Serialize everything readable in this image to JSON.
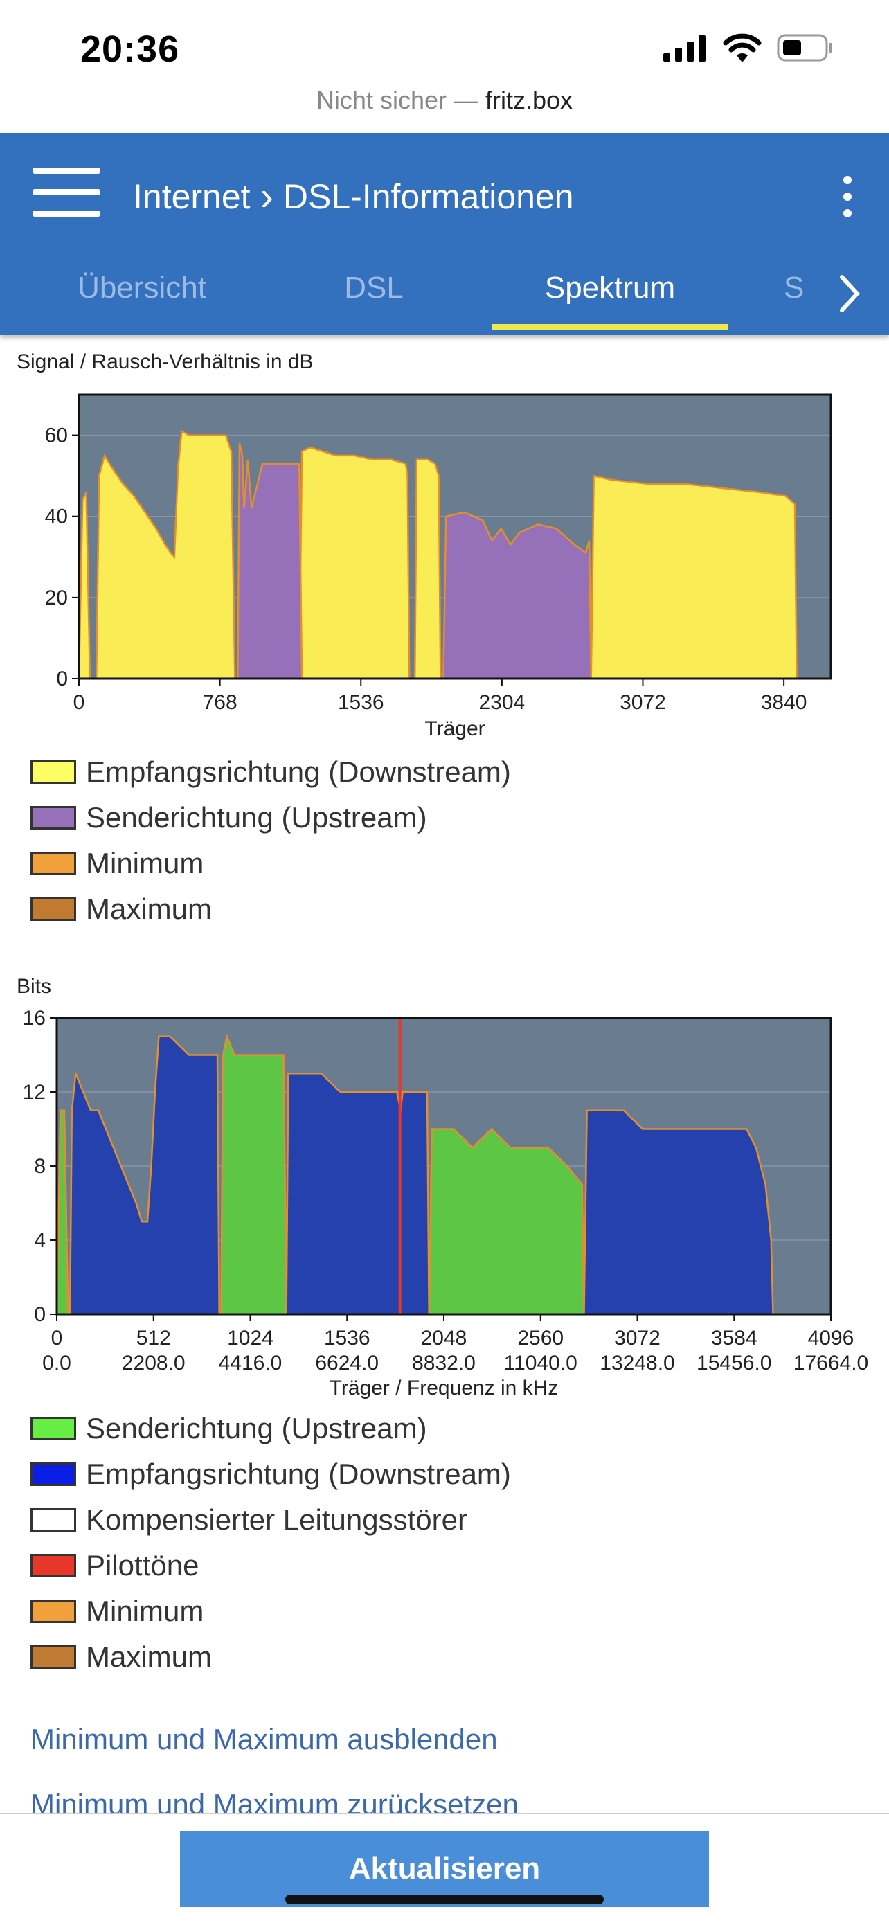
{
  "status": {
    "time": "20:36",
    "url_prefix": "Nicht sicher — ",
    "url_host": "fritz.box"
  },
  "header": {
    "breadcrumb_parent": "Internet",
    "breadcrumb_sep": "›",
    "breadcrumb_current": "DSL-Informationen",
    "tabs": [
      {
        "label": "Übersicht"
      },
      {
        "label": "DSL"
      },
      {
        "label": "Spektrum"
      },
      {
        "label": "S"
      }
    ],
    "active_tab": "Spektrum"
  },
  "chart_data": [
    {
      "type": "area",
      "title": "Signal / Rausch-Verhältnis in dB",
      "xlabel": "Träger",
      "ylabel": "",
      "xlim": [
        0,
        4096
      ],
      "ylim": [
        0,
        70
      ],
      "xticks": [
        "0",
        "768",
        "1536",
        "2304",
        "3072",
        "3840"
      ],
      "xtick_values": [
        0,
        768,
        1536,
        2304,
        3072,
        3840
      ],
      "yticks": [
        "0",
        "20",
        "40",
        "60"
      ],
      "ytick_values": [
        0,
        20,
        40,
        60
      ],
      "grid": true,
      "series": [
        {
          "name": "Empfangsrichtung (Downstream)",
          "color": "#f9ec55",
          "segments": [
            {
              "x": [
                0,
                20,
                40,
                60
              ],
              "y": [
                0,
                44,
                46,
                0
              ]
            },
            {
              "x": [
                95,
                110,
                140,
                180,
                240,
                300,
                360,
                420,
                470,
                500,
                520,
                540,
                560,
                600,
                700,
                800,
                830,
                850
              ],
              "y": [
                0,
                50,
                55,
                52,
                48,
                45,
                41,
                37,
                33,
                31,
                30,
                52,
                61,
                60,
                60,
                60,
                56,
                0
              ]
            },
            {
              "x": [
                1200,
                1215,
                1260,
                1400,
                1500,
                1600,
                1700,
                1780,
                1790,
                1800
              ],
              "y": [
                0,
                56,
                57,
                55,
                55,
                54,
                54,
                53,
                50,
                0
              ]
            },
            {
              "x": [
                1830,
                1840,
                1900,
                1940,
                1960,
                1970
              ],
              "y": [
                0,
                54,
                54,
                53,
                50,
                0
              ]
            },
            {
              "x": [
                2790,
                2805,
                2900,
                3100,
                3300,
                3500,
                3700,
                3850,
                3900,
                3910
              ],
              "y": [
                0,
                50,
                49,
                48,
                48,
                47,
                46,
                45,
                43,
                0
              ]
            }
          ]
        },
        {
          "name": "Senderichtung (Upstream)",
          "color": "#9670b8",
          "segments": [
            {
              "x": [
                865,
                875,
                890,
                900,
                920,
                940,
                1000,
                1100,
                1200,
                1215
              ],
              "y": [
                0,
                58,
                55,
                42,
                54,
                42,
                53,
                53,
                53,
                0
              ]
            },
            {
              "x": [
                1985,
                2000,
                2100,
                2200,
                2250,
                2300,
                2350,
                2400,
                2500,
                2600,
                2700,
                2760,
                2780,
                2790
              ],
              "y": [
                0,
                40,
                41,
                39,
                34,
                37,
                33,
                36,
                38,
                37,
                33,
                31,
                34,
                0
              ]
            }
          ]
        },
        {
          "name": "Minimum",
          "color": "#f1a03b",
          "lines": true
        },
        {
          "name": "Maximum",
          "color": "#c07a32",
          "lines": true
        }
      ]
    },
    {
      "type": "area",
      "title": "Bits",
      "xlabel": "Träger / Frequenz in kHz",
      "ylabel": "",
      "xlim": [
        0,
        4096
      ],
      "ylim": [
        0,
        16
      ],
      "xticks": [
        "0",
        "512",
        "1024",
        "1536",
        "2048",
        "2560",
        "3072",
        "3584",
        "4096"
      ],
      "xticks_secondary": [
        "0.0",
        "2208.0",
        "4416.0",
        "6624.0",
        "8832.0",
        "11040.0",
        "13248.0",
        "15456.0",
        "17664.0"
      ],
      "xtick_values": [
        0,
        512,
        1024,
        1536,
        2048,
        2560,
        3072,
        3584,
        4096
      ],
      "yticks": [
        "0",
        "4",
        "8",
        "12",
        "16"
      ],
      "ytick_values": [
        0,
        4,
        8,
        12,
        16
      ],
      "grid": true,
      "series": [
        {
          "name": "Senderichtung (Upstream)",
          "color": "#5ec645",
          "segments": [
            {
              "x": [
                0,
                20,
                40,
                60,
                70
              ],
              "y": [
                0,
                11,
                11,
                0,
                0
              ]
            },
            {
              "x": [
                870,
                880,
                900,
                940,
                1000,
                1200,
                1215
              ],
              "y": [
                0,
                14,
                15,
                14,
                14,
                14,
                0
              ]
            },
            {
              "x": [
                1970,
                1985,
                2100,
                2200,
                2300,
                2400,
                2600,
                2700,
                2780,
                2790
              ],
              "y": [
                0,
                10,
                10,
                9,
                10,
                9,
                9,
                8,
                7,
                0
              ]
            }
          ]
        },
        {
          "name": "Empfangsrichtung (Downstream)",
          "color": "#2541ad",
          "segments": [
            {
              "x": [
                70,
                80,
                100,
                140,
                180,
                220,
                260,
                300,
                340,
                380,
                420,
                450,
                480,
                500,
                520,
                540,
                560,
                600,
                700,
                800,
                850,
                860
              ],
              "y": [
                0,
                11,
                13,
                12,
                11,
                11,
                10,
                9,
                8,
                7,
                6,
                5,
                5,
                8,
                12,
                15,
                15,
                15,
                14,
                14,
                14,
                0
              ]
            },
            {
              "x": [
                1215,
                1225,
                1400,
                1500,
                1600,
                1700,
                1800,
                1820,
                1830,
                1960,
                1970
              ],
              "y": [
                0,
                13,
                13,
                12,
                12,
                12,
                12,
                11,
                12,
                12,
                0
              ]
            },
            {
              "x": [
                2790,
                2805,
                2900,
                3000,
                3100,
                3300,
                3500,
                3650,
                3700,
                3750,
                3780,
                3790
              ],
              "y": [
                0,
                11,
                11,
                11,
                10,
                10,
                10,
                10,
                9,
                7,
                4,
                0
              ]
            }
          ]
        },
        {
          "name": "Kompensierter Leitungsstörer",
          "color": "#ffffff"
        },
        {
          "name": "Pilottöne",
          "color": "#e8372a",
          "x": [
            1816
          ]
        },
        {
          "name": "Minimum",
          "color": "#f1a03b"
        },
        {
          "name": "Maximum",
          "color": "#c07a32"
        }
      ]
    }
  ],
  "links": {
    "hide_minmax": "Minimum und Maximum ausblenden",
    "reset_minmax": "Minimum und Maximum zurücksetzen"
  },
  "footer": {
    "refresh_button": "Aktualisieren"
  },
  "colors": {
    "header_bg": "#3370bd",
    "plot_bg": "#6a7c8f",
    "accent_underline": "#f1e84a",
    "link": "#3a68ad",
    "button_bg": "#4a8dd9"
  }
}
